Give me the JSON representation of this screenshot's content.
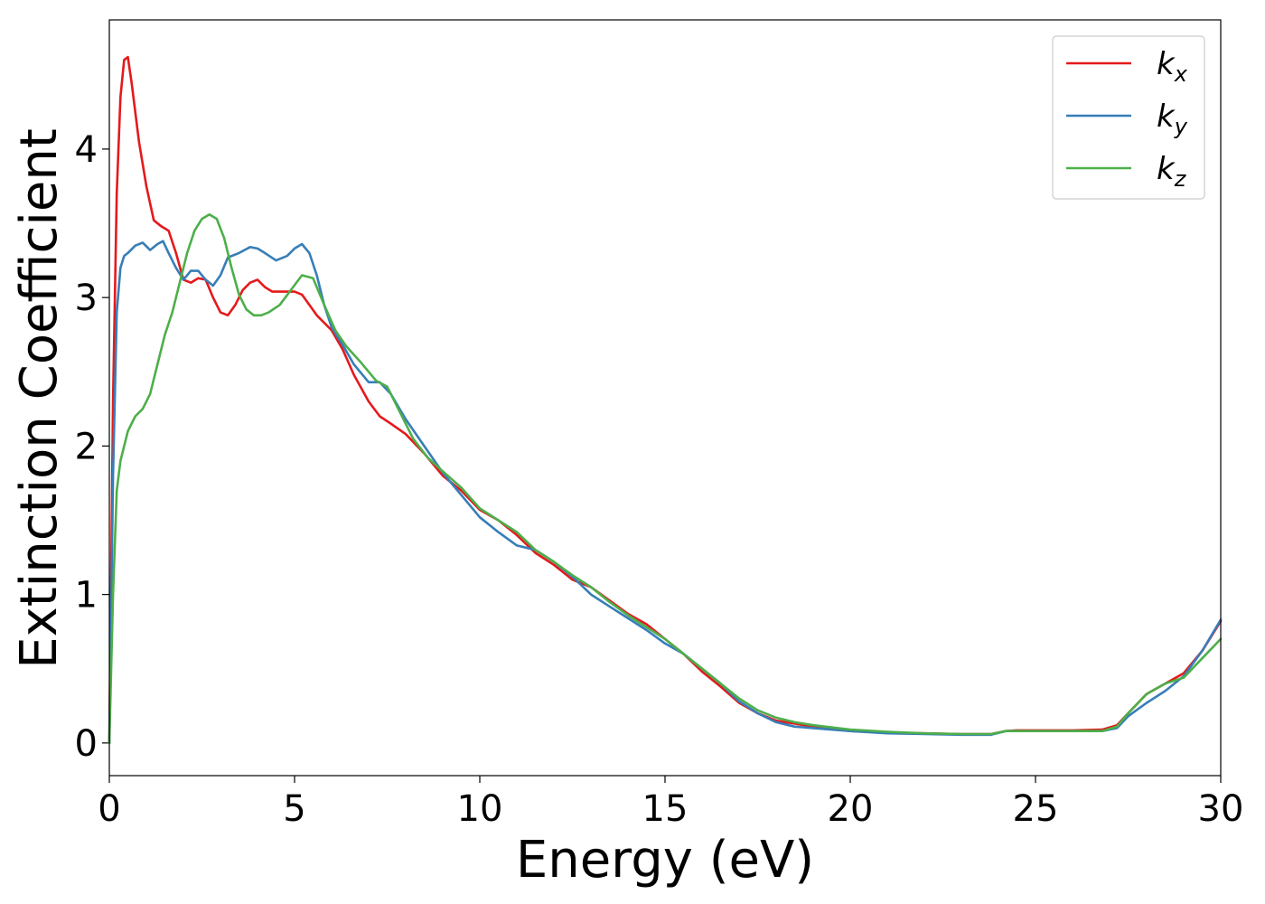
{
  "chart_data": {
    "type": "line",
    "xlabel": "Energy (eV)",
    "ylabel": "Extinction Coefficient",
    "xlim": [
      0,
      30
    ],
    "ylim": [
      -0.22,
      4.87
    ],
    "xticks": [
      0,
      5,
      10,
      15,
      20,
      25,
      30
    ],
    "yticks": [
      0,
      1,
      2,
      3,
      4
    ],
    "grid": false,
    "legend_position": "top-right",
    "series": [
      {
        "name": "k",
        "subscript": "x",
        "color": "#e41a1c",
        "x": [
          0,
          0.1,
          0.2,
          0.3,
          0.4,
          0.5,
          0.6,
          0.8,
          1.0,
          1.2,
          1.4,
          1.6,
          1.8,
          2.0,
          2.2,
          2.4,
          2.6,
          2.8,
          3.0,
          3.2,
          3.4,
          3.6,
          3.8,
          4.0,
          4.2,
          4.4,
          4.6,
          4.8,
          5.0,
          5.2,
          5.4,
          5.6,
          5.8,
          6.0,
          6.3,
          6.6,
          7.0,
          7.3,
          7.6,
          8.0,
          8.5,
          9.0,
          9.5,
          10.0,
          10.5,
          11.0,
          11.5,
          12.0,
          12.5,
          13.0,
          13.5,
          14.0,
          14.5,
          15.0,
          15.5,
          16.0,
          16.5,
          17.0,
          17.5,
          18.0,
          18.5,
          19.0,
          20.0,
          21.0,
          22.0,
          23.0,
          23.8,
          24.2,
          24.5,
          25.0,
          26.0,
          26.8,
          27.2,
          27.5,
          28.0,
          28.5,
          29.0,
          29.5,
          30.0
        ],
        "values": [
          0.0,
          2.3,
          3.7,
          4.35,
          4.6,
          4.62,
          4.45,
          4.05,
          3.75,
          3.52,
          3.48,
          3.45,
          3.3,
          3.12,
          3.1,
          3.13,
          3.12,
          3.0,
          2.9,
          2.88,
          2.95,
          3.05,
          3.1,
          3.12,
          3.07,
          3.04,
          3.04,
          3.04,
          3.04,
          3.02,
          2.95,
          2.88,
          2.83,
          2.78,
          2.65,
          2.48,
          2.3,
          2.2,
          2.15,
          2.08,
          1.95,
          1.8,
          1.7,
          1.57,
          1.5,
          1.4,
          1.28,
          1.2,
          1.1,
          1.05,
          0.96,
          0.87,
          0.8,
          0.7,
          0.6,
          0.48,
          0.38,
          0.27,
          0.2,
          0.15,
          0.13,
          0.11,
          0.08,
          0.07,
          0.065,
          0.06,
          0.06,
          0.08,
          0.085,
          0.085,
          0.085,
          0.09,
          0.12,
          0.2,
          0.33,
          0.4,
          0.47,
          0.62,
          0.82
        ]
      },
      {
        "name": "k",
        "subscript": "y",
        "color": "#377eb8",
        "x": [
          0,
          0.1,
          0.2,
          0.3,
          0.4,
          0.5,
          0.7,
          0.9,
          1.1,
          1.3,
          1.45,
          1.6,
          1.8,
          2.0,
          2.2,
          2.4,
          2.6,
          2.8,
          3.0,
          3.2,
          3.5,
          3.8,
          4.0,
          4.2,
          4.5,
          4.8,
          5.0,
          5.2,
          5.4,
          5.6,
          5.8,
          6.0,
          6.3,
          6.6,
          7.0,
          7.3,
          7.6,
          8.0,
          8.5,
          9.0,
          9.5,
          10.0,
          10.5,
          11.0,
          11.5,
          12.0,
          12.5,
          13.0,
          13.5,
          14.0,
          14.5,
          15.0,
          15.5,
          16.0,
          16.5,
          17.0,
          17.5,
          18.0,
          18.5,
          19.0,
          20.0,
          21.0,
          22.0,
          23.0,
          23.8,
          24.2,
          24.5,
          25.0,
          26.0,
          26.8,
          27.2,
          27.5,
          28.0,
          28.5,
          29.0,
          29.5,
          30.0
        ],
        "values": [
          0.0,
          1.8,
          2.9,
          3.2,
          3.28,
          3.3,
          3.35,
          3.37,
          3.32,
          3.36,
          3.38,
          3.3,
          3.2,
          3.12,
          3.18,
          3.18,
          3.12,
          3.08,
          3.15,
          3.27,
          3.3,
          3.34,
          3.33,
          3.3,
          3.25,
          3.28,
          3.33,
          3.36,
          3.3,
          3.15,
          2.95,
          2.8,
          2.68,
          2.55,
          2.43,
          2.43,
          2.35,
          2.18,
          2.0,
          1.82,
          1.67,
          1.52,
          1.42,
          1.33,
          1.3,
          1.22,
          1.12,
          1.0,
          0.92,
          0.84,
          0.76,
          0.67,
          0.6,
          0.5,
          0.4,
          0.28,
          0.2,
          0.14,
          0.11,
          0.1,
          0.08,
          0.065,
          0.06,
          0.055,
          0.055,
          0.08,
          0.08,
          0.08,
          0.08,
          0.08,
          0.1,
          0.18,
          0.27,
          0.35,
          0.45,
          0.62,
          0.83
        ]
      },
      {
        "name": "k",
        "subscript": "z",
        "color": "#4daf4a",
        "x": [
          0,
          0.1,
          0.2,
          0.3,
          0.5,
          0.7,
          0.9,
          1.1,
          1.3,
          1.5,
          1.7,
          1.9,
          2.1,
          2.3,
          2.5,
          2.7,
          2.9,
          3.1,
          3.3,
          3.5,
          3.7,
          3.9,
          4.1,
          4.3,
          4.6,
          4.9,
          5.2,
          5.5,
          5.8,
          6.1,
          6.4,
          6.8,
          7.2,
          7.5,
          7.8,
          8.2,
          8.6,
          9.0,
          9.5,
          10.0,
          10.5,
          11.0,
          11.5,
          12.0,
          12.5,
          13.0,
          13.5,
          14.0,
          14.5,
          15.0,
          15.5,
          16.0,
          16.5,
          17.0,
          17.5,
          18.0,
          18.5,
          19.0,
          20.0,
          21.0,
          22.0,
          23.0,
          23.8,
          24.2,
          24.5,
          25.0,
          26.0,
          26.8,
          27.2,
          27.5,
          28.0,
          28.5,
          29.0,
          29.5,
          30.0
        ],
        "values": [
          0.0,
          1.0,
          1.7,
          1.9,
          2.1,
          2.2,
          2.25,
          2.35,
          2.55,
          2.75,
          2.9,
          3.1,
          3.3,
          3.45,
          3.53,
          3.56,
          3.53,
          3.4,
          3.2,
          3.02,
          2.92,
          2.88,
          2.88,
          2.9,
          2.95,
          3.05,
          3.15,
          3.13,
          2.95,
          2.78,
          2.67,
          2.56,
          2.44,
          2.4,
          2.25,
          2.05,
          1.92,
          1.83,
          1.72,
          1.58,
          1.5,
          1.42,
          1.3,
          1.22,
          1.13,
          1.05,
          0.95,
          0.86,
          0.78,
          0.7,
          0.6,
          0.5,
          0.4,
          0.3,
          0.22,
          0.17,
          0.14,
          0.12,
          0.09,
          0.075,
          0.065,
          0.06,
          0.06,
          0.08,
          0.08,
          0.08,
          0.08,
          0.08,
          0.11,
          0.2,
          0.33,
          0.4,
          0.44,
          0.57,
          0.7
        ]
      }
    ]
  }
}
